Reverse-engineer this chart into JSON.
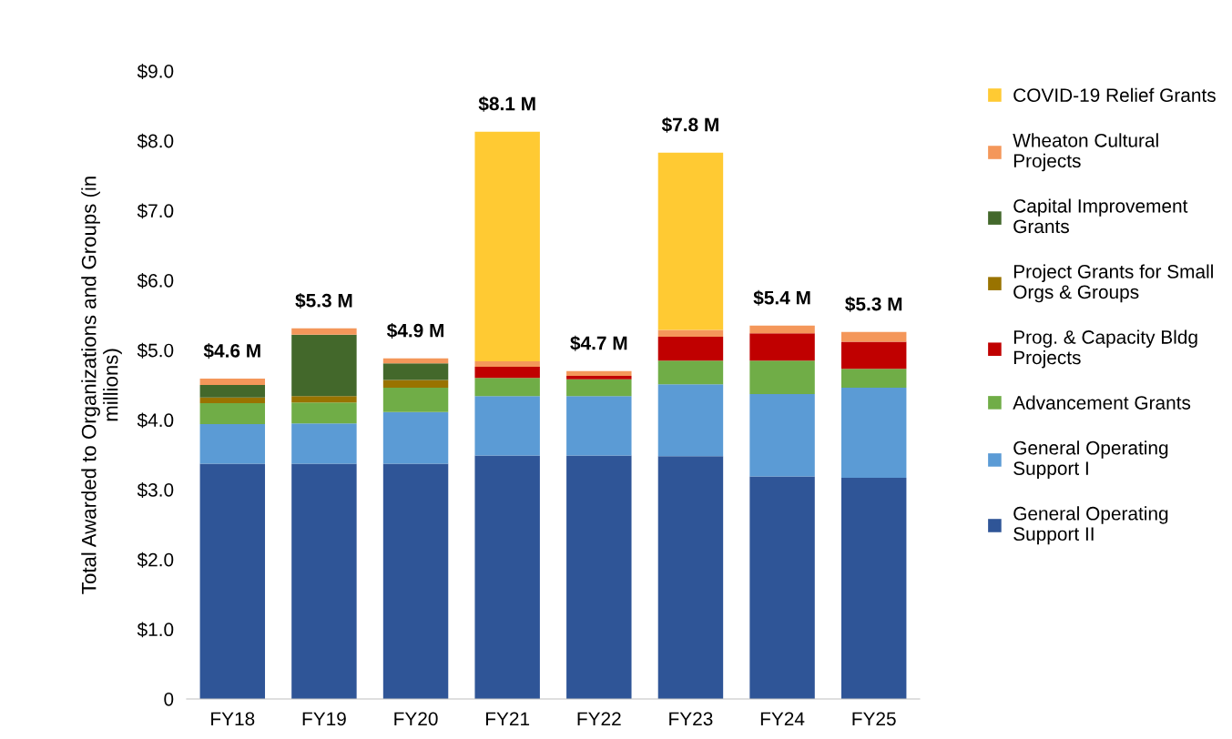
{
  "chart_data": {
    "type": "bar",
    "stacked": true,
    "ylabel": "Total Awarded to Organizations and Groups (in\nmillions)",
    "categories": [
      "FY18",
      "FY19",
      "FY20",
      "FY21",
      "FY22",
      "FY23",
      "FY24",
      "FY25"
    ],
    "series": [
      {
        "name": "General Operating\nSupport II",
        "color": "#2f5597",
        "values": [
          3.37,
          3.37,
          3.37,
          3.49,
          3.49,
          3.48,
          3.19,
          3.17
        ]
      },
      {
        "name": "General Operating\nSupport I",
        "color": "#5b9bd5",
        "values": [
          0.57,
          0.58,
          0.74,
          0.85,
          0.85,
          1.03,
          1.18,
          1.29
        ]
      },
      {
        "name": "Advancement Grants",
        "color": "#70ad47",
        "values": [
          0.3,
          0.3,
          0.35,
          0.26,
          0.24,
          0.34,
          0.48,
          0.27
        ]
      },
      {
        "name": "Prog. & Capacity Bldg\nProjects",
        "color": "#c00000",
        "values": [
          null,
          null,
          null,
          0.16,
          0.05,
          0.34,
          0.39,
          0.39
        ]
      },
      {
        "name": "Project Grants for Small\nOrgs & Groups",
        "color": "#997300",
        "values": [
          0.08,
          0.09,
          0.11,
          null,
          null,
          null,
          null,
          null
        ]
      },
      {
        "name": "Capital Improvement\nGrants",
        "color": "#43682b",
        "values": [
          0.18,
          0.88,
          0.24,
          null,
          null,
          null,
          null,
          null
        ]
      },
      {
        "name": "Wheaton Cultural\nProjects",
        "color": "#f4975a",
        "values": [
          0.09,
          0.09,
          0.07,
          0.08,
          0.07,
          0.1,
          0.11,
          0.14
        ]
      },
      {
        "name": "COVID-19 Relief Grants",
        "color": "#ffca33",
        "values": [
          null,
          null,
          null,
          3.29,
          null,
          2.54,
          null,
          null
        ]
      }
    ],
    "totals": [
      "$4.6 M",
      "$5.3 M",
      "$4.9 M",
      "$8.1 M",
      "$4.7 M",
      "$7.8 M",
      "$5.4 M",
      "$5.3 M"
    ],
    "ylim": [
      0,
      9
    ],
    "yticks": [
      0,
      {
        "value": 1,
        "label": "$1.0"
      },
      {
        "value": 2,
        "label": "$2.0"
      },
      {
        "value": 3,
        "label": "$3.0"
      },
      {
        "value": 4,
        "label": "$4.0"
      },
      {
        "value": 5,
        "label": "$5.0"
      },
      {
        "value": 6,
        "label": "$6.0"
      },
      {
        "value": 7,
        "label": "$7.0"
      },
      {
        "value": 8,
        "label": "$8.0"
      },
      {
        "value": 9,
        "label": "$9.0"
      }
    ],
    "grid": false,
    "legend": "right"
  }
}
